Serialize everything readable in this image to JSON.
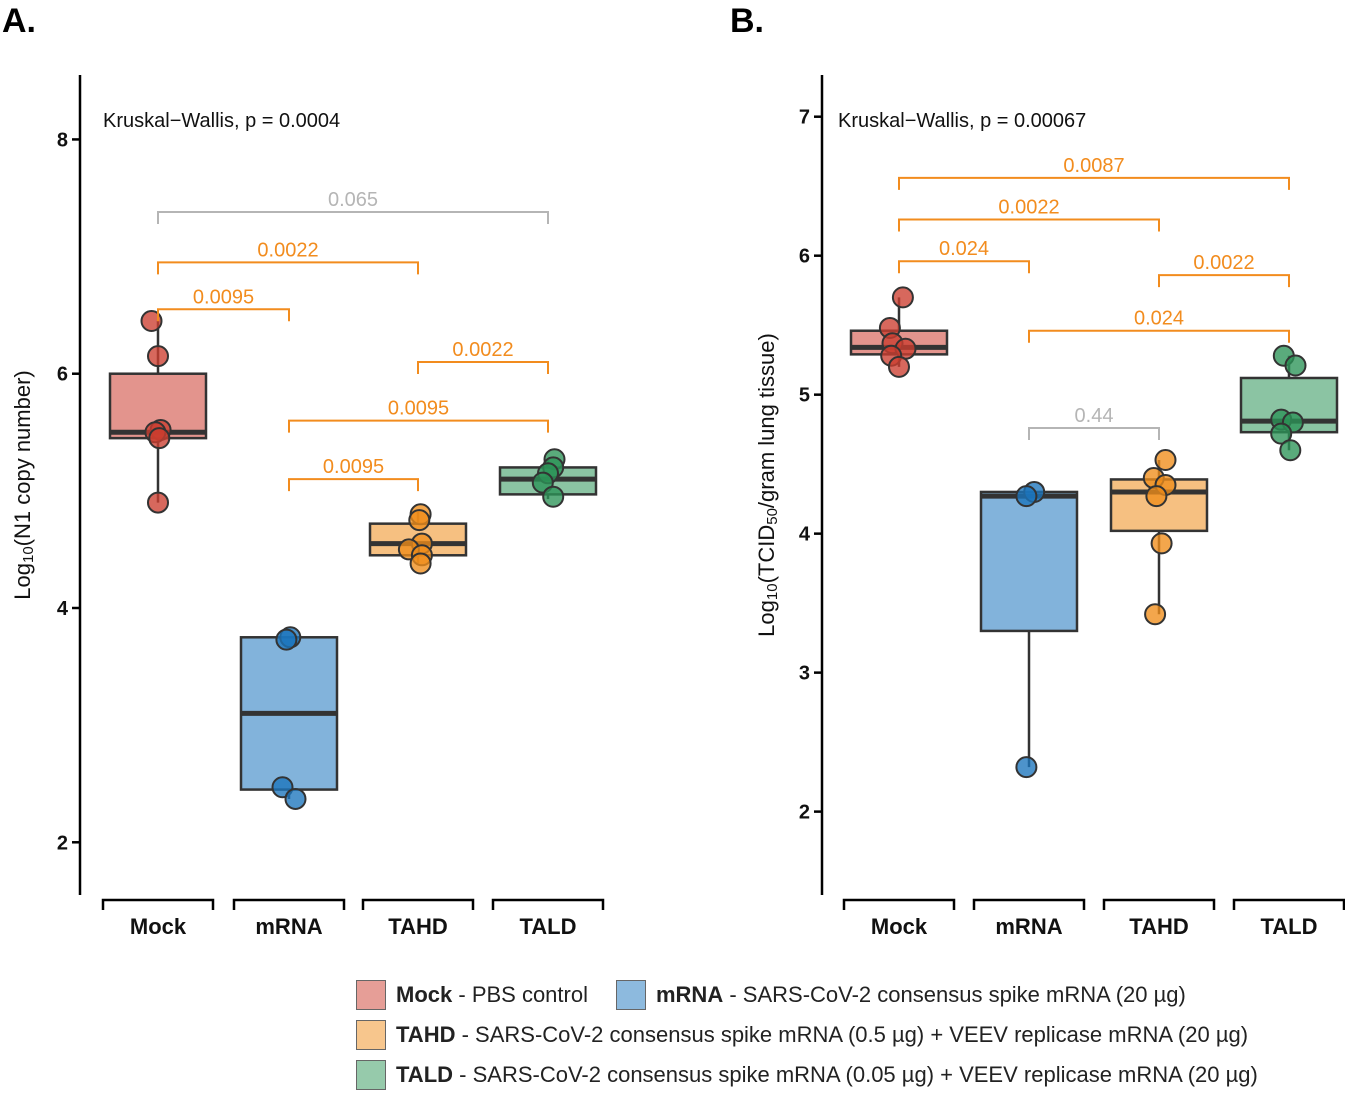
{
  "colors": {
    "Mock": "#cc3d2f",
    "mRNA": "#1b74bd",
    "TAHD": "#ef8d1a",
    "TALD": "#2c9457",
    "sig": "#f28c1e",
    "nonsig": "#b5b5b5",
    "box_line": "#333333"
  },
  "chart_data": [
    {
      "type": "box",
      "panel_label": "A.",
      "ylabel": {
        "base": "Log",
        "sub": "10",
        "rest": "(N1 copy number)"
      },
      "ylim": [
        1.55,
        8.55
      ],
      "yticks": [
        2,
        4,
        6,
        8
      ],
      "categories": [
        "Mock",
        "mRNA",
        "TAHD",
        "TALD"
      ],
      "stat_text": "Kruskal−Wallis, p = 0.0004",
      "boxes": [
        {
          "group": "Mock",
          "q1": 5.45,
          "median": 5.5,
          "q3": 6.0,
          "whisker_low": 4.9,
          "whisker_high": 6.45
        },
        {
          "group": "mRNA",
          "q1": 2.45,
          "median": 3.1,
          "q3": 3.75,
          "whisker_low": 2.37,
          "whisker_high": 3.75
        },
        {
          "group": "TAHD",
          "q1": 4.45,
          "median": 4.55,
          "q3": 4.72,
          "whisker_low": 4.38,
          "whisker_high": 4.82
        },
        {
          "group": "TALD",
          "q1": 4.97,
          "median": 5.1,
          "q3": 5.2,
          "whisker_low": 4.93,
          "whisker_high": 5.27
        }
      ],
      "points": [
        {
          "group": "Mock",
          "values": [
            6.45,
            6.15,
            5.52,
            5.5,
            5.45,
            4.9
          ],
          "jitter": [
            -0.05,
            0.0,
            0.02,
            -0.02,
            0.01,
            0.0
          ]
        },
        {
          "group": "mRNA",
          "values": [
            3.75,
            3.73,
            2.47,
            2.37
          ],
          "jitter": [
            0.01,
            -0.02,
            -0.05,
            0.05
          ]
        },
        {
          "group": "TAHD",
          "values": [
            4.8,
            4.75,
            4.55,
            4.5,
            4.45,
            4.38
          ],
          "jitter": [
            0.02,
            0.01,
            0.03,
            -0.07,
            0.03,
            0.02
          ]
        },
        {
          "group": "TALD",
          "values": [
            5.27,
            5.2,
            5.15,
            5.07,
            4.95
          ],
          "jitter": [
            0.05,
            0.04,
            0.0,
            -0.04,
            0.04
          ]
        }
      ],
      "comparisons": [
        {
          "from": "Mock",
          "to": "TALD",
          "p": "0.065",
          "y": 7.38,
          "sig": false
        },
        {
          "from": "Mock",
          "to": "TAHD",
          "p": "0.0022",
          "y": 6.95,
          "sig": true
        },
        {
          "from": "Mock",
          "to": "mRNA",
          "p": "0.0095",
          "y": 6.55,
          "sig": true
        },
        {
          "from": "TAHD",
          "to": "TALD",
          "p": "0.0022",
          "y": 6.1,
          "sig": true
        },
        {
          "from": "mRNA",
          "to": "TALD",
          "p": "0.0095",
          "y": 5.6,
          "sig": true
        },
        {
          "from": "mRNA",
          "to": "TAHD",
          "p": "0.0095",
          "y": 5.1,
          "sig": true
        }
      ]
    },
    {
      "type": "box",
      "panel_label": "B.",
      "ylabel": {
        "base": "Log",
        "sub": "10",
        "rest": "(TCID",
        "sub2": "50",
        "rest2": "/gram lung tissue)"
      },
      "ylim": [
        1.4,
        7.3
      ],
      "yticks": [
        2,
        3,
        4,
        5,
        6,
        7
      ],
      "categories": [
        "Mock",
        "mRNA",
        "TAHD",
        "TALD"
      ],
      "stat_text": "Kruskal−Wallis, p = 0.00067",
      "boxes": [
        {
          "group": "Mock",
          "q1": 5.29,
          "median": 5.34,
          "q3": 5.46,
          "whisker_low": 5.2,
          "whisker_high": 5.7
        },
        {
          "group": "mRNA",
          "q1": 3.3,
          "median": 4.27,
          "q3": 4.3,
          "whisker_low": 2.32,
          "whisker_high": 4.3
        },
        {
          "group": "TAHD",
          "q1": 4.02,
          "median": 4.3,
          "q3": 4.39,
          "whisker_low": 3.42,
          "whisker_high": 4.53
        },
        {
          "group": "TALD",
          "q1": 4.73,
          "median": 4.81,
          "q3": 5.12,
          "whisker_low": 4.6,
          "whisker_high": 5.28
        }
      ],
      "points": [
        {
          "group": "Mock",
          "values": [
            5.7,
            5.48,
            5.37,
            5.33,
            5.28,
            5.2
          ],
          "jitter": [
            0.03,
            -0.07,
            -0.05,
            0.05,
            -0.06,
            0.0
          ]
        },
        {
          "group": "mRNA",
          "values": [
            4.3,
            4.27,
            2.32
          ],
          "jitter": [
            0.04,
            -0.02,
            -0.02
          ]
        },
        {
          "group": "TAHD",
          "values": [
            4.53,
            4.4,
            4.35,
            4.27,
            3.93,
            3.42
          ],
          "jitter": [
            0.05,
            -0.04,
            0.05,
            -0.02,
            0.02,
            -0.03
          ]
        },
        {
          "group": "TALD",
          "values": [
            5.28,
            5.21,
            4.82,
            4.8,
            4.72,
            4.6
          ],
          "jitter": [
            -0.04,
            0.05,
            -0.06,
            0.03,
            -0.06,
            0.01
          ]
        }
      ],
      "comparisons": [
        {
          "from": "Mock",
          "to": "TALD",
          "p": "0.0087",
          "y": 6.56,
          "sig": true
        },
        {
          "from": "Mock",
          "to": "TAHD",
          "p": "0.0022",
          "y": 6.26,
          "sig": true
        },
        {
          "from": "Mock",
          "to": "mRNA",
          "p": "0.024",
          "y": 5.96,
          "sig": true
        },
        {
          "from": "TAHD",
          "to": "TALD",
          "p": "0.0022",
          "y": 5.86,
          "sig": true
        },
        {
          "from": "mRNA",
          "to": "TALD",
          "p": "0.024",
          "y": 5.46,
          "sig": true
        },
        {
          "from": "mRNA",
          "to": "TAHD",
          "p": "0.44",
          "y": 4.76,
          "sig": false
        }
      ]
    }
  ],
  "legend": [
    {
      "key": "Mock",
      "text": "PBS control"
    },
    {
      "key": "mRNA",
      "text": "SARS-CoV-2 consensus spike mRNA (20 µg)"
    },
    {
      "key": "TAHD",
      "text": "SARS-CoV-2 consensus spike mRNA (0.5 µg) + VEEV replicase mRNA (20 µg)"
    },
    {
      "key": "TALD",
      "text": "SARS-CoV-2 consensus spike mRNA (0.05 µg) + VEEV replicase mRNA (20 µg)"
    }
  ],
  "legend_separator": " - "
}
